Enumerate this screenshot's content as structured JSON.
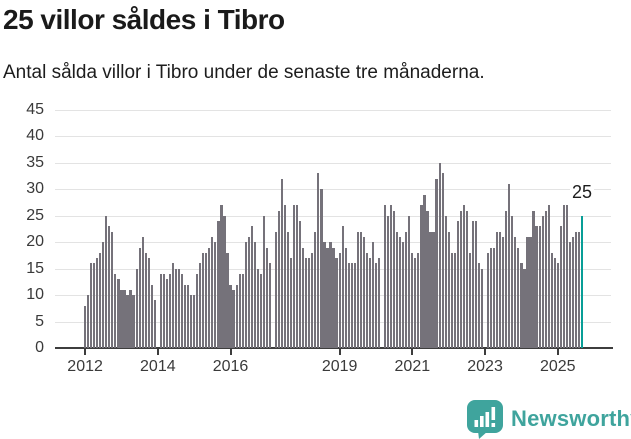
{
  "header": {
    "title": "25 villor såldes i Tibro",
    "subtitle": "Antal sålda villor i Tibro under de senaste tre månaderna."
  },
  "chart_data": {
    "type": "bar",
    "title": "25 villor såldes i Tibro",
    "subtitle": "Antal sålda villor i Tibro under de senaste tre månaderna.",
    "x_start": "2012-01",
    "x_end": "2025-09",
    "frequency": "monthly",
    "values": [
      8,
      10,
      16,
      16,
      17,
      18,
      20,
      25,
      23,
      22,
      14,
      13,
      11,
      11,
      10,
      11,
      10,
      15,
      19,
      21,
      18,
      17,
      12,
      9,
      0,
      14,
      14,
      13,
      14,
      16,
      15,
      15,
      14,
      12,
      12,
      10,
      10,
      14,
      16,
      18,
      18,
      19,
      21,
      20,
      24,
      27,
      25,
      18,
      12,
      11,
      12,
      14,
      14,
      20,
      21,
      23,
      20,
      15,
      14,
      25,
      19,
      16,
      0,
      22,
      26,
      32,
      27,
      22,
      17,
      27,
      27,
      24,
      19,
      17,
      17,
      18,
      22,
      33,
      30,
      20,
      19,
      20,
      19,
      17,
      18,
      23,
      19,
      16,
      16,
      16,
      22,
      22,
      21,
      18,
      17,
      20,
      16,
      17,
      0,
      27,
      25,
      27,
      26,
      22,
      21,
      20,
      22,
      25,
      18,
      17,
      18,
      27,
      29,
      26,
      22,
      22,
      32,
      35,
      33,
      25,
      22,
      18,
      18,
      24,
      26,
      27,
      26,
      18,
      24,
      24,
      16,
      15,
      0,
      18,
      19,
      19,
      22,
      22,
      21,
      26,
      31,
      25,
      21,
      19,
      16,
      15,
      21,
      21,
      26,
      23,
      23,
      25,
      26,
      27,
      18,
      17,
      16,
      23,
      27,
      27,
      20,
      21,
      22,
      22,
      25
    ],
    "highlight": {
      "index": 164,
      "value": 25,
      "label": "25"
    },
    "x_tick_years": [
      2012,
      2014,
      2016,
      2019,
      2021,
      2023,
      2025
    ],
    "x_tick_labels": [
      "2012",
      "2014",
      "2016",
      "2019",
      "2021",
      "2023",
      "2025"
    ],
    "y_ticks": [
      0,
      5,
      10,
      15,
      20,
      25,
      30,
      35,
      40,
      45
    ],
    "ylim": [
      0,
      45
    ],
    "grid": true,
    "legend": "none",
    "bar_color": "#75727A",
    "highlight_color": "#089E97",
    "gridline_color": "#E3E3E3",
    "axis_color": "#3D3D3D"
  },
  "annotation": {
    "label": "25"
  },
  "branding": {
    "label": "Newsworthy",
    "color": "#3FA49D",
    "icon": "newsworthy-speech-bubble-bar-chart-icon"
  }
}
